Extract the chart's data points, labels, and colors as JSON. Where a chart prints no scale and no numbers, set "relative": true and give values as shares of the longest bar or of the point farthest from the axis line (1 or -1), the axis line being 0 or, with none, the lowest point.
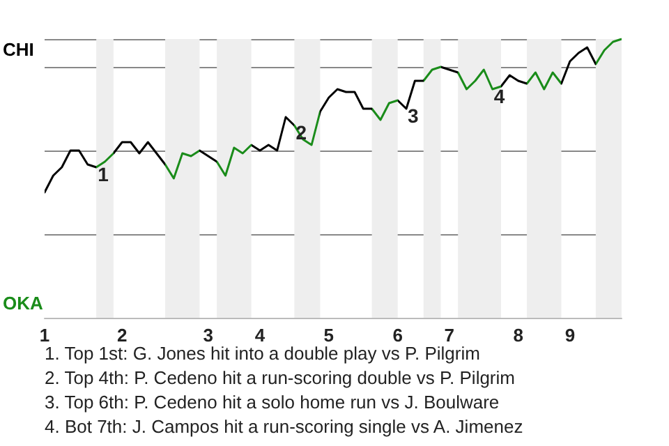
{
  "chart_data": {
    "type": "line",
    "categories": [
      "1",
      null,
      null,
      null,
      null,
      null,
      null,
      null,
      null,
      "2",
      null,
      null,
      null,
      null,
      null,
      null,
      null,
      null,
      null,
      "3",
      null,
      null,
      null,
      null,
      null,
      "4",
      null,
      null,
      null,
      null,
      null,
      null,
      null,
      "5",
      null,
      null,
      null,
      null,
      null,
      null,
      null,
      "6",
      null,
      null,
      null,
      null,
      null,
      "7",
      null,
      null,
      null,
      null,
      null,
      null,
      null,
      "8",
      null,
      null,
      null,
      null,
      null,
      "9",
      null,
      null,
      null,
      null,
      null,
      null
    ],
    "relative": true,
    "values": [
      0.45,
      0.51,
      0.54,
      0.6,
      0.6,
      0.55,
      0.54,
      0.56,
      0.59,
      0.63,
      0.63,
      0.59,
      0.63,
      0.59,
      0.55,
      0.5,
      0.59,
      0.58,
      0.6,
      0.58,
      0.56,
      0.51,
      0.61,
      0.59,
      0.62,
      0.6,
      0.62,
      0.6,
      0.72,
      0.69,
      0.64,
      0.62,
      0.74,
      0.79,
      0.82,
      0.81,
      0.81,
      0.75,
      0.75,
      0.71,
      0.77,
      0.78,
      0.75,
      0.85,
      0.85,
      0.89,
      0.9,
      0.89,
      0.88,
      0.82,
      0.85,
      0.89,
      0.82,
      0.83,
      0.87,
      0.85,
      0.84,
      0.88,
      0.82,
      0.88,
      0.84,
      0.92,
      0.95,
      0.97,
      0.91,
      0.96,
      0.99,
      1.0
    ],
    "colors": [
      "#000000",
      "#000000",
      "#000000",
      "#000000",
      "#000000",
      "#000000",
      "#1a8c1a",
      "#1a8c1a",
      "#000000",
      "#000000",
      "#000000",
      "#000000",
      "#000000",
      "#000000",
      "#1a8c1a",
      "#1a8c1a",
      "#1a8c1a",
      "#1a8c1a",
      "#000000",
      "#000000",
      "#1a8c1a",
      "#1a8c1a",
      "#1a8c1a",
      "#1a8c1a",
      "#000000",
      "#000000",
      "#000000",
      "#000000",
      "#000000",
      "#1a8c1a",
      "#1a8c1a",
      "#1a8c1a",
      "#000000",
      "#000000",
      "#000000",
      "#000000",
      "#000000",
      "#000000",
      "#1a8c1a",
      "#1a8c1a",
      "#1a8c1a",
      "#000000",
      "#000000",
      "#000000",
      "#1a8c1a",
      "#1a8c1a",
      "#000000",
      "#000000",
      "#1a8c1a",
      "#1a8c1a",
      "#1a8c1a",
      "#1a8c1a",
      "#1a8c1a",
      "#000000",
      "#000000",
      "#000000",
      "#1a8c1a",
      "#1a8c1a",
      "#1a8c1a",
      "#1a8c1a",
      "#000000",
      "#000000",
      "#000000",
      "#000000",
      "#1a8c1a",
      "#1a8c1a",
      "#1a8c1a",
      "#1a8c1a"
    ],
    "grid": "y",
    "marker": "none",
    "annotations": [
      "CHI",
      "OKA",
      "1",
      "2",
      "3",
      "4",
      "1. Top 1st: G. Jones hit into a double play vs P. Pilgrim",
      "2. Top 4th: P. Cedeno hit a run-scoring double vs P. Pilgrim",
      "3. Top 6th: P. Cedeno hit a solo home run vs J. Boulware",
      "4. Bot 7th: J. Campos hit a run-scoring single vs A. Jimenez"
    ]
  }
}
